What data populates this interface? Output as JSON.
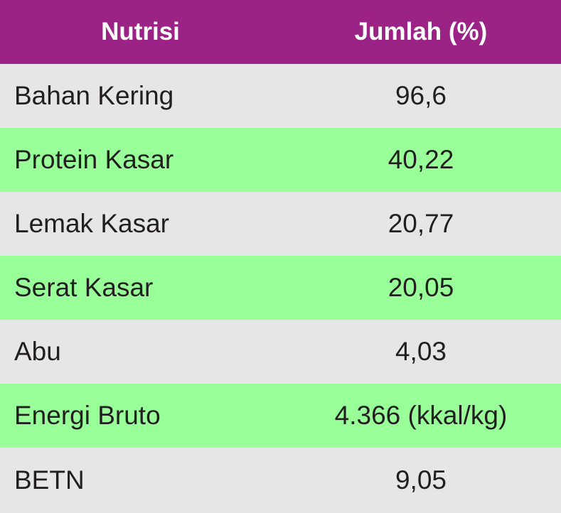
{
  "colors": {
    "header_bg": "#9b2385",
    "header_text": "#ffffff",
    "row_gray": "#e6e6e6",
    "row_green": "#99ff99",
    "body_text": "#231f20"
  },
  "table": {
    "headers": [
      "Nutrisi",
      "Jumlah (%)"
    ],
    "rows": [
      {
        "nutrient": "Bahan Kering",
        "amount": "96,6"
      },
      {
        "nutrient": "Protein Kasar",
        "amount": "40,22"
      },
      {
        "nutrient": "Lemak Kasar",
        "amount": "20,77"
      },
      {
        "nutrient": "Serat Kasar",
        "amount": "20,05"
      },
      {
        "nutrient": "Abu",
        "amount": "4,03"
      },
      {
        "nutrient": "Energi Bruto",
        "amount": "4.366 (kkal/kg)"
      },
      {
        "nutrient": "BETN",
        "amount": "9,05"
      }
    ]
  }
}
